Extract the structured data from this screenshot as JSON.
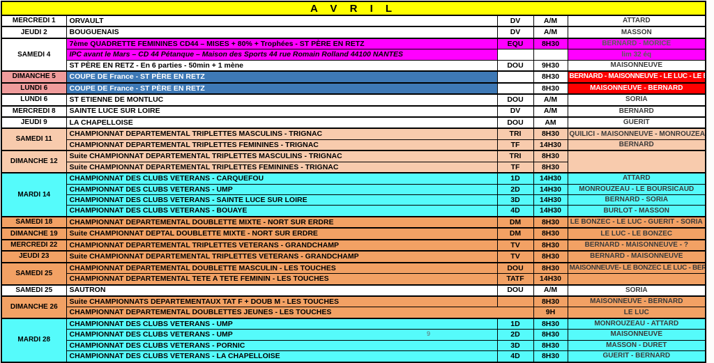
{
  "title": "A V R I L",
  "page_number": "9",
  "colors": {
    "yellow": "#FFFF00",
    "magenta": "#FF00FF",
    "blue": "#3E79B6",
    "red": "#FF0000",
    "pink": "#F09C9C",
    "peach": "#F8CBAD",
    "orange": "#F2A164",
    "cyan": "#55FBFB"
  },
  "rows": [
    {
      "group": true,
      "date": {
        "text": "MERCREDI 1"
      },
      "desc": {
        "text": "ORVAULT"
      },
      "code": {
        "text": "DV"
      },
      "time": {
        "text": "A/M"
      },
      "names": {
        "text": "ATTARD"
      }
    },
    {
      "group": true,
      "date": {
        "text": "JEUDI 2"
      },
      "desc": {
        "text": "BOUGUENAIS"
      },
      "code": {
        "text": "DV"
      },
      "time": {
        "text": "A/M"
      },
      "names": {
        "text": "MASSON"
      }
    },
    {
      "group": true,
      "date": {
        "text": "SAMEDI 4",
        "rowspan": 3
      },
      "desc": {
        "text": "7ème QUADRETTE FEMININES CD44 – MISES + 80% + Trophées - ST PÈRE EN RETZ",
        "bg": "magenta"
      },
      "code": {
        "text": "EQU",
        "bg": "magenta"
      },
      "time": {
        "text": "8H30",
        "bg": "magenta"
      },
      "names": {
        "text": "BERNARD - MORICE",
        "bg": "magenta",
        "cls": "t-gray"
      }
    },
    {
      "desc": {
        "text": "IPC avant le  Mars – CD 44 Pétanque – Maison des Sports 44 rue Romain Rolland 44100 NANTES",
        "bg": "magenta",
        "cls": "italic"
      },
      "code": {
        "text": ""
      },
      "time": {
        "text": ""
      },
      "names": {
        "text": "lim 32 éq",
        "bg": "magenta",
        "cls": "t-gray"
      }
    },
    {
      "desc": {
        "text": "ST PÈRE EN RETZ - En 6 parties - 50min + 1 mène"
      },
      "code": {
        "text": "DOU"
      },
      "time": {
        "text": "9H30"
      },
      "names": {
        "text": "MAISONNEUVE"
      }
    },
    {
      "group": true,
      "date": {
        "text": "DIMANCHE 5",
        "bg": "pink"
      },
      "desc": {
        "text": "COUPE DE France - ST PÈRE EN RETZ",
        "bg": "blue"
      },
      "code": {
        "text": ""
      },
      "time": {
        "text": "8H30"
      },
      "names": {
        "text": "BERNARD - MAISONNEUVE - LE LUC - LE BOURSICAUD",
        "bg": "red",
        "cls": "sz-xs"
      }
    },
    {
      "group": true,
      "date": {
        "text": "LUNDI 6",
        "bg": "pink"
      },
      "desc": {
        "text": "COUPE DE France - ST PÈRE EN RETZ",
        "bg": "blue"
      },
      "code": {
        "text": ""
      },
      "time": {
        "text": "8H30"
      },
      "names": {
        "text": "MAISONNEUVE - BERNARD",
        "bg": "red"
      }
    },
    {
      "group": true,
      "date": {
        "text": "LUNDI 6"
      },
      "desc": {
        "text": "ST ETIENNE DE MONTLUC"
      },
      "code": {
        "text": "DOU"
      },
      "time": {
        "text": "A/M"
      },
      "names": {
        "text": "SORIA"
      }
    },
    {
      "group": true,
      "date": {
        "text": "MERCREDI 8"
      },
      "desc": {
        "text": "SAINTE LUCE SUR LOIRE"
      },
      "code": {
        "text": "DV"
      },
      "time": {
        "text": "A/M"
      },
      "names": {
        "text": "BERNARD"
      }
    },
    {
      "group": true,
      "date": {
        "text": "JEUDI 9"
      },
      "desc": {
        "text": "LA CHAPELLOISE"
      },
      "code": {
        "text": "DOU"
      },
      "time": {
        "text": "AM"
      },
      "names": {
        "text": "GUERIT"
      }
    },
    {
      "group": true,
      "date": {
        "text": "SAMEDI 11",
        "rowspan": 2,
        "bg": "peach"
      },
      "desc": {
        "text": "CHAMPIONNAT DEPARTEMENTAL TRIPLETTES MASCULINS -  TRIGNAC",
        "bg": "peach"
      },
      "code": {
        "text": "TRI",
        "bg": "peach"
      },
      "time": {
        "text": "8H30",
        "bg": "peach"
      },
      "names": {
        "text": "QUILICI - MAISONNEUVE - MONROUZEAU",
        "bg": "peach",
        "cls": "sz-s"
      }
    },
    {
      "desc": {
        "text": "CHAMPIONNAT DEPARTEMENTAL TRIPLETTES FEMININES - TRIGNAC",
        "bg": "peach"
      },
      "code": {
        "text": "TF",
        "bg": "peach"
      },
      "time": {
        "text": "14H30",
        "bg": "peach"
      },
      "names": {
        "text": "BERNARD",
        "bg": "peach"
      }
    },
    {
      "group": true,
      "date": {
        "text": "DIMANCHE 12",
        "rowspan": 2,
        "bg": "peach"
      },
      "desc": {
        "text": "Suite CHAMPIONNAT DEPARTEMENTAL TRIPLETTES MASCULINS - TRIGNAC",
        "bg": "peach"
      },
      "code": {
        "text": "TRI",
        "bg": "peach"
      },
      "time": {
        "text": "8H30",
        "bg": "peach"
      },
      "names": {
        "text": "",
        "bg": "peach",
        "rowspan": 2
      }
    },
    {
      "desc": {
        "text": "Suite CHAMPIONNAT DEPARTEMENTAL TRIPLETTES FEMININES - TRIGNAC",
        "bg": "peach"
      },
      "code": {
        "text": "TF",
        "bg": "peach"
      },
      "time": {
        "text": "8H30",
        "bg": "peach"
      }
    },
    {
      "group": true,
      "date": {
        "text": "MARDI 14",
        "rowspan": 4,
        "bg": "cyan"
      },
      "desc": {
        "text": "CHAMPIONNAT DES CLUBS VETERANS - CARQUEFOU",
        "bg": "cyan"
      },
      "code": {
        "text": "1D",
        "bg": "cyan"
      },
      "time": {
        "text": "14H30",
        "bg": "cyan"
      },
      "names": {
        "text": "ATTARD",
        "bg": "cyan"
      }
    },
    {
      "desc": {
        "text": "CHAMPIONNAT DES CLUBS VETERANS - UMP",
        "bg": "cyan"
      },
      "code": {
        "text": "2D",
        "bg": "cyan"
      },
      "time": {
        "text": "14H30",
        "bg": "cyan"
      },
      "names": {
        "text": "MONROUZEAU - LE BOURSICAUD",
        "bg": "cyan",
        "cls": "sz-s"
      }
    },
    {
      "desc": {
        "text": "CHAMPIONNAT DES CLUBS VETERANS -  SAINTE LUCE SUR LOIRE",
        "bg": "cyan"
      },
      "code": {
        "text": "3D",
        "bg": "cyan"
      },
      "time": {
        "text": "14H30",
        "bg": "cyan"
      },
      "names": {
        "text": "BERNARD - SORIA",
        "bg": "cyan"
      }
    },
    {
      "desc": {
        "text": "CHAMPIONNAT DES CLUBS VETERANS - BOUAYE",
        "bg": "cyan"
      },
      "code": {
        "text": "4D",
        "bg": "cyan"
      },
      "time": {
        "text": "14H30",
        "bg": "cyan"
      },
      "names": {
        "text": "BURLOT - MASSON",
        "bg": "cyan"
      }
    },
    {
      "group": true,
      "date": {
        "text": "SAMEDI 18",
        "bg": "orange"
      },
      "desc": {
        "text": "CHAMPIONNAT DEPARTEMENTAL DOUBLETTE MIXTE -  NORT SUR ERDRE",
        "bg": "orange"
      },
      "code": {
        "text": "DM",
        "bg": "orange"
      },
      "time": {
        "text": "8H30",
        "bg": "orange"
      },
      "names": {
        "text": "LE BONZEC - LE LUC - GUERIT - SORIA",
        "bg": "orange",
        "cls": "sz-s"
      }
    },
    {
      "group": true,
      "date": {
        "text": "DIMANCHE 19",
        "bg": "orange"
      },
      "desc": {
        "text": "Suite CHAMPIONNAT DEPTAL DOUBLETTE MIXTE -  NORT SUR ERDRE",
        "bg": "orange"
      },
      "code": {
        "text": "DM",
        "bg": "orange"
      },
      "time": {
        "text": "8H30",
        "bg": "orange"
      },
      "names": {
        "text": "LE LUC - LE BONZEC",
        "bg": "orange"
      }
    },
    {
      "group": true,
      "date": {
        "text": "MERCREDI 22",
        "bg": "orange"
      },
      "desc": {
        "text": "CHAMPIONNAT DEPARTEMENTAL TRIPLETTES VETERANS - GRANDCHAMP",
        "bg": "orange"
      },
      "code": {
        "text": "TV",
        "bg": "orange"
      },
      "time": {
        "text": "8H30",
        "bg": "orange"
      },
      "names": {
        "text": "BERNARD - MAISONNEUVE - ?",
        "bg": "orange"
      }
    },
    {
      "group": true,
      "date": {
        "text": "JEUDI 23",
        "bg": "orange"
      },
      "desc": {
        "text": "Suite CHAMPIONNAT DEPARTEMENTAL TRIPLETTES VETERANS - GRANDCHAMP",
        "bg": "orange"
      },
      "code": {
        "text": "TV",
        "bg": "orange"
      },
      "time": {
        "text": "8H30",
        "bg": "orange"
      },
      "names": {
        "text": "BERNARD - MAISONNEUVE",
        "bg": "orange"
      }
    },
    {
      "group": true,
      "date": {
        "text": "SAMEDI 25",
        "rowspan": 2,
        "bg": "orange"
      },
      "desc": {
        "text": "CHAMPIONNAT DEPARTEMENTAL DOUBLETTE MASCULIN - LES TOUCHES",
        "bg": "orange"
      },
      "code": {
        "text": "DOU",
        "bg": "orange"
      },
      "time": {
        "text": "8H30",
        "bg": "orange"
      },
      "names": {
        "text": "MAISONNEUVE- LE BONZEC  LE LUC - BERNARD",
        "bg": "orange",
        "cls": "sz-xs"
      }
    },
    {
      "desc": {
        "text": "CHAMPIONNAT DEPARTEMENTAL TETE A TETE FEMININ - LES TOUCHES",
        "bg": "orange"
      },
      "code": {
        "text": "TATF",
        "bg": "orange"
      },
      "time": {
        "text": "14H30",
        "bg": "orange"
      },
      "names": {
        "text": "",
        "bg": "orange"
      }
    },
    {
      "group": true,
      "date": {
        "text": "SAMEDI 25"
      },
      "desc": {
        "text": "SAUTRON"
      },
      "code": {
        "text": "DOU"
      },
      "time": {
        "text": "A/M"
      },
      "names": {
        "text": "SORIA"
      }
    },
    {
      "group": true,
      "date": {
        "text": "DIMANCHE 26",
        "rowspan": 2,
        "bg": "orange"
      },
      "desc": {
        "text": "Suite CHAMPIONNATS DEPARTEMENTAUX TAT F + DOUB M - LES TOUCHES",
        "bg": "orange"
      },
      "code": {
        "text": "",
        "bg": "orange"
      },
      "time": {
        "text": "8H30",
        "bg": "orange"
      },
      "names": {
        "text": "MAISONNEUVE - BERNARD",
        "bg": "orange"
      }
    },
    {
      "desc": {
        "text": "CHAMPIONNAT DEPARTEMENTAL DOUBLETTES JEUNES - LES TOUCHES",
        "bg": "orange",
        "colspan": 2
      },
      "time": {
        "text": "9H",
        "bg": "orange"
      },
      "names": {
        "text": "LE LUC",
        "bg": "orange"
      }
    },
    {
      "group": true,
      "date": {
        "text": "MARDI 28",
        "rowspan": 4,
        "bg": "cyan"
      },
      "desc": {
        "text": "CHAMPIONNAT DES CLUBS VETERANS - UMP",
        "bg": "cyan"
      },
      "code": {
        "text": "1D",
        "bg": "cyan"
      },
      "time": {
        "text": "8H30",
        "bg": "cyan"
      },
      "names": {
        "text": "MONROUZEAU - ATTARD",
        "bg": "cyan"
      }
    },
    {
      "desc": {
        "text": "CHAMPIONNAT DES CLUBS VETERANS -  UMP",
        "bg": "cyan"
      },
      "code": {
        "text": "2D",
        "bg": "cyan"
      },
      "time": {
        "text": "8H30",
        "bg": "cyan"
      },
      "names": {
        "text": "MAISONNEUVE",
        "bg": "cyan"
      }
    },
    {
      "desc": {
        "text": "CHAMPIONNAT DES CLUBS VETERANS -  PORNIC",
        "bg": "cyan"
      },
      "code": {
        "text": "3D",
        "bg": "cyan"
      },
      "time": {
        "text": "8H30",
        "bg": "cyan"
      },
      "names": {
        "text": "MASSON - DURET",
        "bg": "cyan"
      }
    },
    {
      "desc": {
        "text": "CHAMPIONNAT DES CLUBS VETERANS - LA CHAPELLOISE",
        "bg": "cyan"
      },
      "code": {
        "text": "4D",
        "bg": "cyan"
      },
      "time": {
        "text": "8H30",
        "bg": "cyan"
      },
      "names": {
        "text": "GUERIT - BERNARD",
        "bg": "cyan"
      }
    }
  ]
}
